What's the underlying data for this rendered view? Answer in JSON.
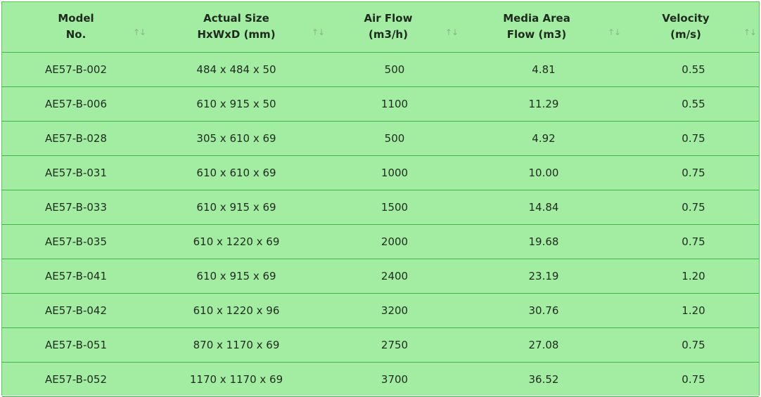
{
  "table": {
    "columns": [
      {
        "line1": "Model",
        "line2": "No.",
        "sort_icon": "sort-arrows-icon"
      },
      {
        "line1": "Actual Size",
        "line2": "HxWxD (mm)",
        "sort_icon": "sort-arrows-icon"
      },
      {
        "line1": "Air Flow",
        "line2": "(m3/h)",
        "sort_icon": "sort-arrows-icon"
      },
      {
        "line1": "Media Area",
        "line2": "Flow (m3)",
        "sort_icon": "sort-arrows-icon"
      },
      {
        "line1": "Velocity",
        "line2": "(m/s)",
        "sort_icon": "sort-arrows-icon"
      }
    ],
    "sort_glyph": "↑↓",
    "rows": [
      [
        "AE57-B-002",
        "484 x 484 x 50",
        "500",
        "4.81",
        "0.55"
      ],
      [
        "AE57-B-006",
        "610 x 915 x 50",
        "1100",
        "11.29",
        "0.55"
      ],
      [
        "AE57-B-028",
        "305 x 610 x 69",
        "500",
        "4.92",
        "0.75"
      ],
      [
        "AE57-B-031",
        "610 x 610 x 69",
        "1000",
        "10.00",
        "0.75"
      ],
      [
        "AE57-B-033",
        "610 x 915 x 69",
        "1500",
        "14.84",
        "0.75"
      ],
      [
        "AE57-B-035",
        "610 x 1220 x 69",
        "2000",
        "19.68",
        "0.75"
      ],
      [
        "AE57-B-041",
        "610 x 915 x 69",
        "2400",
        "23.19",
        "1.20"
      ],
      [
        "AE57-B-042",
        "610 x 1220 x 96",
        "3200",
        "30.76",
        "1.20"
      ],
      [
        "AE57-B-051",
        "870 x 1170 x 69",
        "2750",
        "27.08",
        "0.75"
      ],
      [
        "AE57-B-052",
        "1170 x 1170 x 69",
        "3700",
        "36.52",
        "0.75"
      ]
    ]
  },
  "colors": {
    "table_background": "#a3eda3",
    "row_border": "#3fb54a",
    "text": "#1f2a1f",
    "sort_icon": "#8ab58a"
  }
}
